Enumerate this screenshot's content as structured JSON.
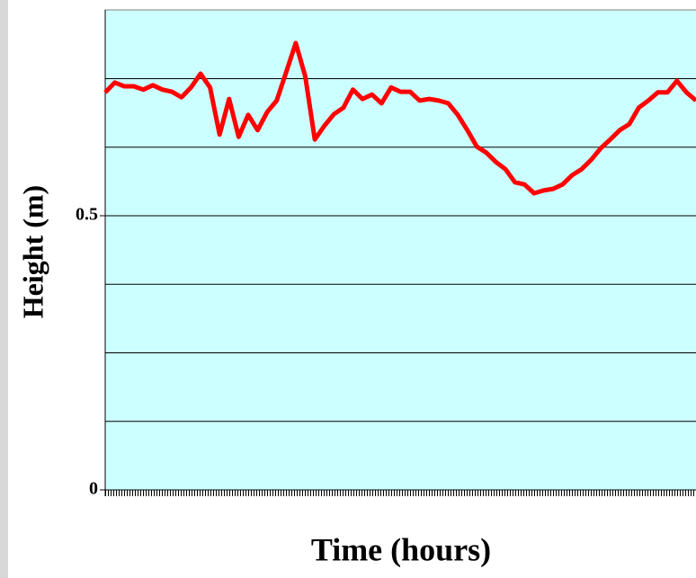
{
  "chart_data": {
    "type": "line",
    "y_label": "Height (m)",
    "x_label": "Time (hours)",
    "ylim": [
      0,
      0.875
    ],
    "yticks": [
      0,
      0.5
    ],
    "y_gridlines": [
      0.125,
      0.25,
      0.375,
      0.5,
      0.625,
      0.75
    ],
    "grid": true,
    "series": [
      {
        "name": "Height",
        "color": "#ff0000",
        "values": [
          0.725,
          0.743,
          0.736,
          0.736,
          0.73,
          0.738,
          0.73,
          0.726,
          0.716,
          0.734,
          0.759,
          0.734,
          0.648,
          0.713,
          0.644,
          0.684,
          0.656,
          0.689,
          0.71,
          0.762,
          0.815,
          0.754,
          0.639,
          0.664,
          0.685,
          0.697,
          0.73,
          0.713,
          0.721,
          0.705,
          0.734,
          0.726,
          0.726,
          0.71,
          0.713,
          0.71,
          0.705,
          0.684,
          0.656,
          0.626,
          0.615,
          0.598,
          0.585,
          0.561,
          0.557,
          0.541,
          0.546,
          0.549,
          0.557,
          0.574,
          0.585,
          0.602,
          0.623,
          0.639,
          0.656,
          0.667,
          0.697,
          0.71,
          0.725,
          0.725,
          0.746,
          0.725,
          0.71
        ]
      }
    ]
  }
}
